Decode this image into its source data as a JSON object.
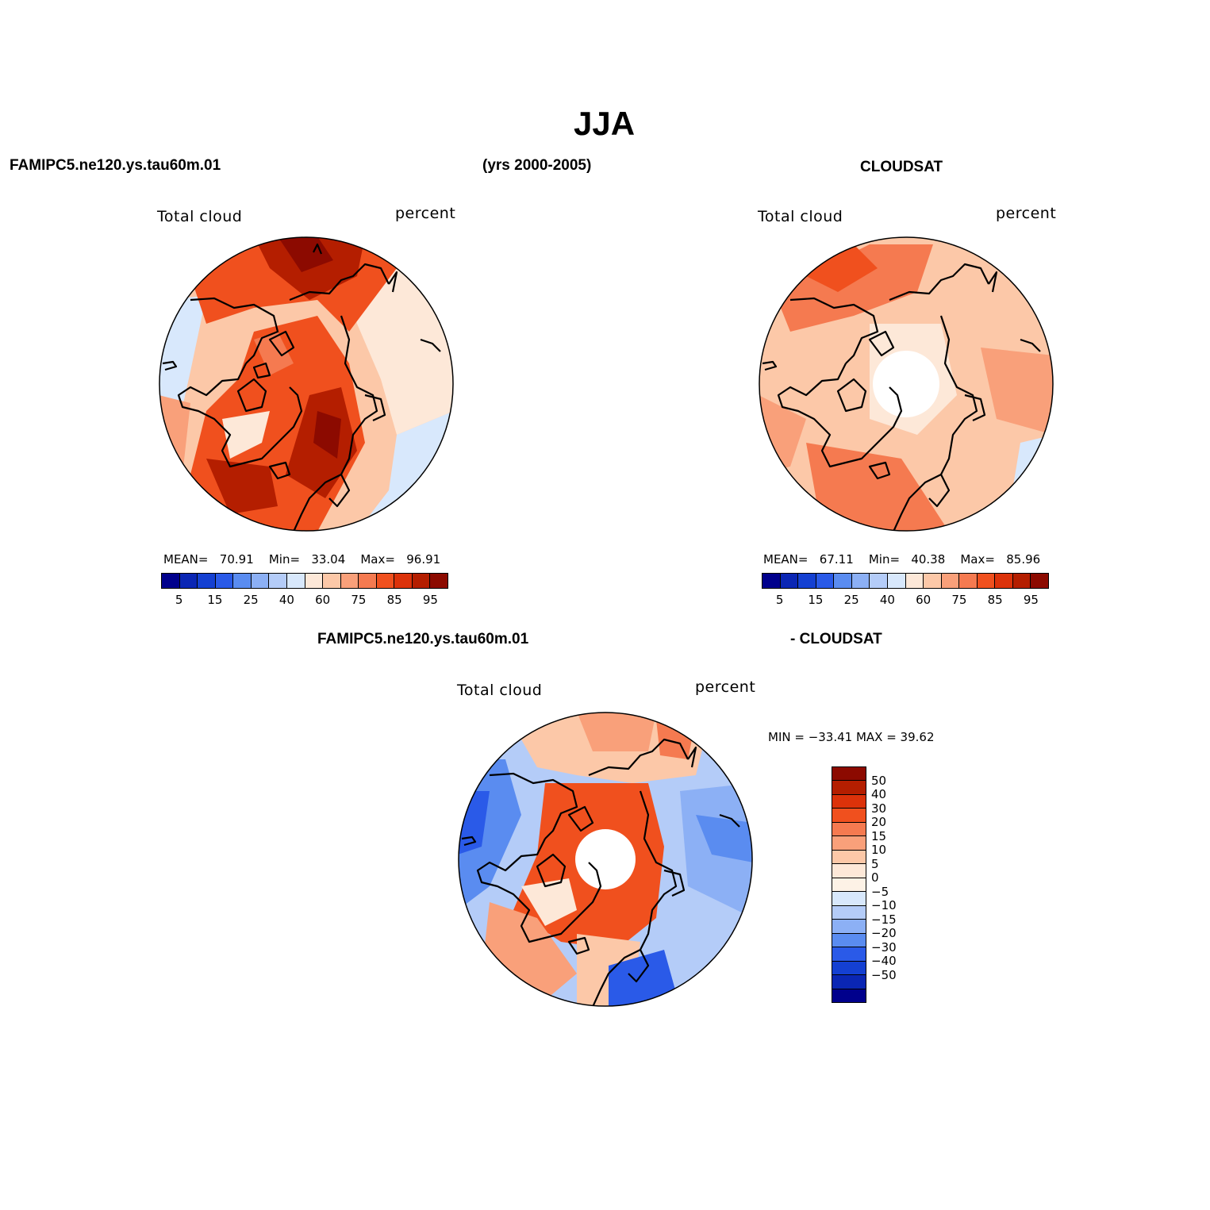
{
  "header": {
    "title": "JJA",
    "left_case": "FAMIPC5.ne120.ys.tau60m.01",
    "years": "(yrs 2000-2005)",
    "right_case": "CLOUDSAT",
    "diff_left": "FAMIPC5.ne120.ys.tau60m.01",
    "diff_right": "- CLOUDSAT"
  },
  "panels": {
    "model": {
      "var_label": "Total cloud",
      "units": "percent",
      "mean_label": "MEAN=",
      "mean_value": "70.91",
      "min_label": "Min=",
      "min_value": "33.04",
      "max_label": "Max=",
      "max_value": "96.91"
    },
    "obs": {
      "var_label": "Total cloud",
      "units": "percent",
      "mean_label": "MEAN=",
      "mean_value": "67.11",
      "min_label": "Min=",
      "min_value": "40.38",
      "max_label": "Max=",
      "max_value": "85.96"
    },
    "diff": {
      "var_label": "Total cloud",
      "units": "percent",
      "minmax_text": "MIN = −33.41  MAX =   39.62"
    }
  },
  "colorbars": {
    "main": {
      "colors": [
        "#00008c",
        "#0a26b4",
        "#1440d2",
        "#2a5ae8",
        "#5a8cf0",
        "#8cb0f5",
        "#b4ccf8",
        "#d8e8fc",
        "#fde8d8",
        "#fcc8a8",
        "#f9a07a",
        "#f57a50",
        "#f0501e",
        "#dc320a",
        "#b41e00",
        "#8c0a00"
      ],
      "tick_labels": [
        "5",
        "15",
        "25",
        "40",
        "60",
        "75",
        "85",
        "95"
      ]
    },
    "diff": {
      "colors": [
        "#8c0a00",
        "#b41e00",
        "#dc320a",
        "#f0501e",
        "#f57a50",
        "#f9a07a",
        "#fcc8a8",
        "#fde8d8",
        "#fdf2e6",
        "#d8e8fc",
        "#b4ccf8",
        "#8cb0f5",
        "#5a8cf0",
        "#2a5ae8",
        "#1440d2",
        "#0a26b4",
        "#00008c"
      ],
      "tick_labels": [
        "50",
        "40",
        "30",
        "20",
        "15",
        "10",
        "5",
        "0",
        "−5",
        "−10",
        "−15",
        "−20",
        "−30",
        "−40",
        "−50"
      ]
    }
  }
}
